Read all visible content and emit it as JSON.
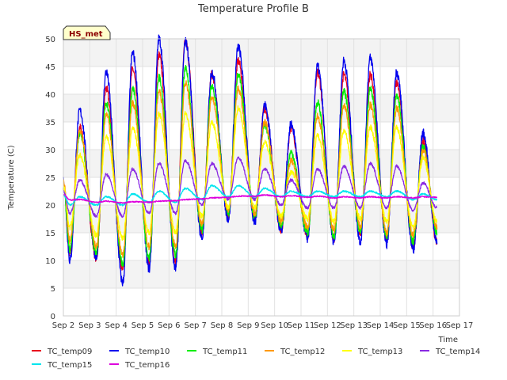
{
  "chart_data": {
    "type": "line",
    "title": "Temperature Profile B",
    "xlabel": "Time",
    "ylabel": "Temperature (C)",
    "badge": "HS_met",
    "x_ticks": [
      "Sep 2",
      "Sep 3",
      "Sep 4",
      "Sep 5",
      "Sep 6",
      "Sep 7",
      "Sep 8",
      "Sep 9",
      "Sep 10",
      "Sep 11",
      "Sep 12",
      "Sep 13",
      "Sep 14",
      "Sep 15",
      "Sep 16",
      "Sep 17"
    ],
    "xlim": [
      0,
      15
    ],
    "ylim": [
      0,
      50
    ],
    "y_ticks": [
      0,
      5,
      10,
      15,
      20,
      25,
      30,
      35,
      40,
      45,
      50
    ],
    "grid": true,
    "legend_position": "bottom",
    "day_labels": [
      "Sep 2",
      "Sep 3",
      "Sep 4",
      "Sep 5",
      "Sep 6",
      "Sep 7",
      "Sep 8",
      "Sep 9",
      "Sep 10",
      "Sep 11",
      "Sep 12",
      "Sep 13",
      "Sep 14",
      "Sep 15",
      "Sep 16"
    ],
    "series": [
      {
        "name": "TC_temp09",
        "color": "#e8001c",
        "daily_max": [
          34,
          41,
          44.5,
          47,
          49.5,
          43.5,
          46,
          37.5,
          34,
          44,
          43.5,
          43.5,
          42,
          31.5
        ],
        "daily_min": [
          11,
          10.5,
          8.5,
          9.5,
          10,
          15,
          18,
          17.5,
          15.5,
          14.5,
          14,
          14.5,
          14,
          12.5
        ],
        "end": 13.5
      },
      {
        "name": "TC_temp10",
        "color": "#0000ee",
        "daily_max": [
          37,
          44,
          47.5,
          50,
          49.5,
          44,
          48.5,
          38,
          34.5,
          45,
          46,
          46.5,
          44,
          33
        ],
        "daily_min": [
          10,
          10.5,
          6,
          8.5,
          8.5,
          14,
          17.5,
          17,
          15.5,
          14,
          13.5,
          13.5,
          13,
          12
        ],
        "end": 13.5
      },
      {
        "name": "TC_temp11",
        "color": "#00ee00",
        "daily_max": [
          33,
          38.5,
          41,
          43,
          44.5,
          41.5,
          43.5,
          34.5,
          29.5,
          38.5,
          40.5,
          41,
          40,
          30.5
        ],
        "daily_min": [
          12,
          11.5,
          9.5,
          10.5,
          11,
          15.5,
          18.5,
          18,
          16.5,
          15,
          14.5,
          15,
          14.5,
          13.5
        ],
        "end": 15
      },
      {
        "name": "TC_temp12",
        "color": "#ff9900",
        "daily_max": [
          33.5,
          36.5,
          38.5,
          40.5,
          42,
          39.5,
          41,
          35,
          28,
          36,
          38,
          38,
          37.5,
          30
        ],
        "daily_min": [
          13.5,
          12.5,
          11,
          12.5,
          12.5,
          16.5,
          19,
          18.5,
          17,
          16,
          15.5,
          16,
          15,
          14.5
        ],
        "end": 16
      },
      {
        "name": "TC_temp13",
        "color": "#ffff00",
        "daily_max": [
          29,
          32.5,
          34,
          36.5,
          36.5,
          35,
          37.5,
          31.5,
          26,
          32.5,
          33.5,
          34,
          34,
          28.5
        ],
        "daily_min": [
          16,
          14.5,
          14,
          15,
          15,
          18,
          19.5,
          19.5,
          18,
          17.5,
          17,
          17.5,
          17,
          16
        ],
        "end": 17
      },
      {
        "name": "TC_temp14",
        "color": "#8a2be2",
        "daily_max": [
          24.5,
          25.5,
          26.5,
          27.5,
          28,
          27.5,
          28.5,
          26.5,
          24.5,
          26.5,
          27,
          27.5,
          27,
          24
        ],
        "daily_min": [
          18.5,
          18,
          18,
          18.5,
          18.5,
          20,
          21,
          21,
          20,
          19.5,
          19.5,
          19.5,
          19.5,
          19
        ],
        "end": 19.5
      },
      {
        "name": "TC_temp15",
        "color": "#00e5ee",
        "daily_max": [
          21.5,
          21.5,
          22,
          22.5,
          23,
          23.5,
          23.5,
          23,
          22.5,
          22.5,
          22.5,
          22.5,
          22.5,
          22
        ],
        "daily_min": [
          20,
          20,
          20,
          20.5,
          20.5,
          21,
          21.5,
          21.5,
          21.5,
          21.5,
          21.5,
          21.5,
          21.5,
          21
        ],
        "end": 21
      },
      {
        "name": "TC_temp16",
        "color": "#dd00dd",
        "daily_max": [
          21,
          20.7,
          20.6,
          20.7,
          21,
          21.3,
          21.6,
          21.8,
          21.7,
          21.6,
          21.5,
          21.5,
          21.5,
          21.5
        ],
        "daily_min": [
          20.9,
          20.5,
          20.4,
          20.5,
          20.8,
          21.1,
          21.4,
          21.6,
          21.5,
          21.4,
          21.3,
          21.3,
          21.3,
          21.3
        ],
        "end": 21.4
      }
    ]
  }
}
